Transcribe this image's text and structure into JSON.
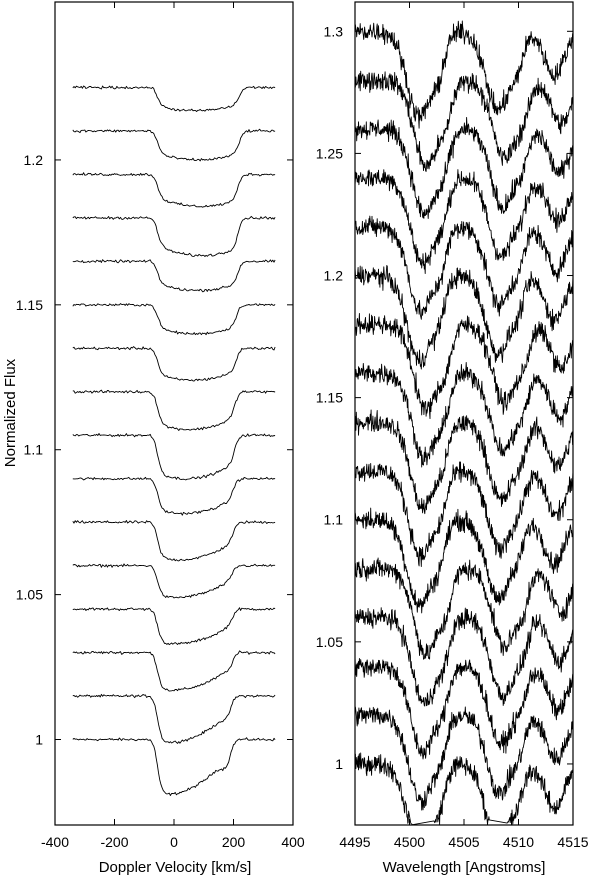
{
  "chart_data": [
    {
      "type": "line",
      "xlabel": "Doppler Velocity [km/s]",
      "ylabel": "Normalized Flux",
      "xlim": [
        -400,
        400
      ],
      "ylim": [
        0.9705,
        1.2545
      ],
      "x_ticks": [
        -400,
        -200,
        0,
        200,
        400
      ],
      "x_tick_labels": [
        "-400",
        "-200",
        "0",
        "200",
        "400"
      ],
      "y_ticks": [
        1.0,
        1.05,
        1.1,
        1.15,
        1.2
      ],
      "y_tick_labels": [
        "1",
        "1.05",
        "1.1",
        "1.15",
        "1.2"
      ],
      "grid": false,
      "profile": {
        "x_range": [
          -340,
          340
        ],
        "continuum_offsets": [
          1.0,
          1.015,
          1.03,
          1.045,
          1.06,
          1.075,
          1.09,
          1.105,
          1.12,
          1.135,
          1.15,
          1.165,
          1.18,
          1.195,
          1.21,
          1.225
        ],
        "line_blue_edge": -55,
        "line_red_edge": [
          190,
          190,
          195,
          195,
          195,
          200,
          200,
          205,
          205,
          210,
          210,
          215,
          215,
          215,
          220,
          220
        ],
        "line_depth": [
          0.019,
          0.016,
          0.013,
          0.012,
          0.011,
          0.013,
          0.012,
          0.015,
          0.013,
          0.011,
          0.01,
          0.01,
          0.013,
          0.011,
          0.01,
          0.008
        ],
        "line_min_velocity": [
          -30,
          -20,
          -10,
          0,
          0,
          15,
          30,
          40,
          50,
          60,
          70,
          80,
          90,
          90,
          80,
          70
        ]
      }
    },
    {
      "type": "line",
      "xlabel": "Wavelength [Angstroms]",
      "ylabel": "",
      "xlim": [
        4495,
        4515
      ],
      "ylim": [
        0.975,
        1.312
      ],
      "x_ticks": [
        4495,
        4500,
        4505,
        4510,
        4515
      ],
      "x_tick_labels": [
        "4495",
        "4500",
        "4505",
        "4510",
        "4515"
      ],
      "y_ticks": [
        1.0,
        1.05,
        1.1,
        1.15,
        1.2,
        1.25,
        1.3
      ],
      "y_tick_labels": [
        "1",
        "1.05",
        "1.1",
        "1.15",
        "1.2",
        "1.25",
        "1.3"
      ],
      "grid": false,
      "spectra": {
        "count": 16,
        "continuum_offsets": [
          1.0,
          1.02,
          1.04,
          1.06,
          1.08,
          1.1,
          1.12,
          1.14,
          1.16,
          1.18,
          1.2,
          1.22,
          1.24,
          1.26,
          1.28,
          1.3
        ],
        "absorption_features": [
          {
            "center": 4501.2,
            "depth": 0.035,
            "width": 1.1
          },
          {
            "center": 4503.0,
            "depth": 0.012,
            "width": 0.6
          },
          {
            "center": 4508.4,
            "depth": 0.032,
            "width": 1.1
          },
          {
            "center": 4510.2,
            "depth": 0.01,
            "width": 0.6
          },
          {
            "center": 4513.6,
            "depth": 0.018,
            "width": 0.9
          }
        ],
        "noise_amplitude": 0.0035
      }
    }
  ]
}
